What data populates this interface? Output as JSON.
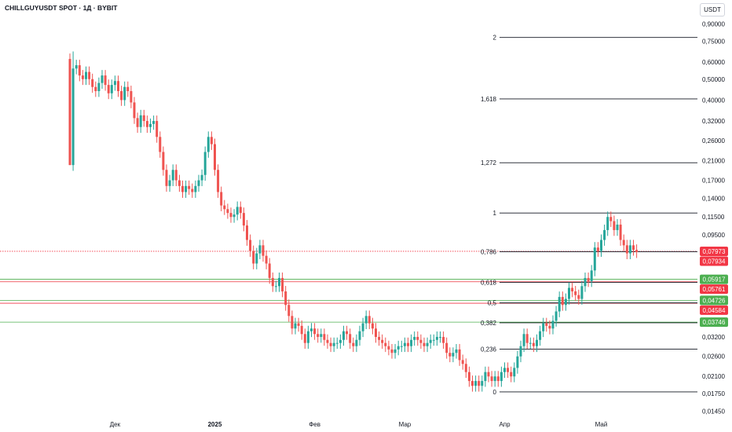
{
  "header": {
    "title": "CHILLGUYUSDT SPOT · 1Д · BYBIT",
    "currency": "USDT"
  },
  "colors": {
    "up": "#26a69a",
    "down": "#ef5350",
    "price_red": "#f23645",
    "price_green": "#4caf50",
    "fib_line": "#131722"
  },
  "chart_data": {
    "type": "candlestick",
    "title": "CHILLGUYUSDT SPOT · 1Д · BYBIT",
    "scale": "log",
    "ylim": [
      0.0135,
      1.0
    ],
    "x_ticks": [
      {
        "label": "Дек",
        "index": 14
      },
      {
        "label": "2025",
        "index": 45
      },
      {
        "label": "Фев",
        "index": 76
      },
      {
        "label": "Мар",
        "index": 104
      },
      {
        "label": "Апр",
        "index": 135
      },
      {
        "label": "Май",
        "index": 165
      }
    ],
    "y_ticks": [
      "0,90000",
      "0,75000",
      "0,60000",
      "0,50000",
      "0,40000",
      "0,32000",
      "0,26000",
      "0,21000",
      "0,17000",
      "0,14000",
      "0,11500",
      "0,09500",
      "0,03200",
      "0,02600",
      "0,02100",
      "0,01750",
      "0,01450"
    ],
    "fib_levels": [
      {
        "label": "2",
        "value": 0.78
      },
      {
        "label": "1,618",
        "value": 0.405
      },
      {
        "label": "1,272",
        "value": 0.205
      },
      {
        "label": "1",
        "value": 0.12
      },
      {
        "label": "0,786",
        "value": 0.0794
      },
      {
        "label": "0,618",
        "value": 0.0573
      },
      {
        "label": "0,5",
        "value": 0.046
      },
      {
        "label": "0,382",
        "value": 0.0372
      },
      {
        "label": "0,236",
        "value": 0.0281
      },
      {
        "label": "0",
        "value": 0.0178
      }
    ],
    "price_labels": [
      {
        "label": "0,07973",
        "value": 0.07973,
        "color": "red"
      },
      {
        "label": "0,07934",
        "value": 0.07934,
        "color": "red"
      },
      {
        "label": "0,05917",
        "value": 0.05917,
        "color": "green"
      },
      {
        "label": "0,05761",
        "value": 0.05761,
        "color": "red"
      },
      {
        "label": "0,04726",
        "value": 0.04726,
        "color": "green"
      },
      {
        "label": "0,04584",
        "value": 0.04584,
        "color": "red"
      },
      {
        "label": "0,03746",
        "value": 0.03746,
        "color": "green"
      }
    ],
    "horizontal_lines": [
      {
        "value": 0.07973,
        "color": "red"
      },
      {
        "value": 0.05917,
        "color": "green"
      },
      {
        "value": 0.05761,
        "color": "red"
      },
      {
        "value": 0.04726,
        "color": "green"
      },
      {
        "value": 0.04584,
        "color": "red"
      },
      {
        "value": 0.03746,
        "color": "green"
      }
    ],
    "candles_close": [
      0.2,
      0.56,
      0.58,
      0.52,
      0.5,
      0.54,
      0.5,
      0.46,
      0.44,
      0.48,
      0.52,
      0.47,
      0.43,
      0.47,
      0.49,
      0.44,
      0.4,
      0.46,
      0.44,
      0.39,
      0.33,
      0.3,
      0.34,
      0.32,
      0.3,
      0.31,
      0.32,
      0.27,
      0.23,
      0.19,
      0.16,
      0.17,
      0.19,
      0.17,
      0.16,
      0.15,
      0.16,
      0.155,
      0.15,
      0.16,
      0.17,
      0.18,
      0.23,
      0.27,
      0.25,
      0.19,
      0.15,
      0.13,
      0.125,
      0.12,
      0.115,
      0.118,
      0.128,
      0.12,
      0.105,
      0.09,
      0.08,
      0.07,
      0.078,
      0.085,
      0.076,
      0.07,
      0.06,
      0.055,
      0.055,
      0.06,
      0.052,
      0.045,
      0.04,
      0.035,
      0.037,
      0.036,
      0.033,
      0.03,
      0.034,
      0.035,
      0.033,
      0.032,
      0.033,
      0.031,
      0.03,
      0.029,
      0.03,
      0.03,
      0.031,
      0.034,
      0.033,
      0.03,
      0.029,
      0.031,
      0.034,
      0.037,
      0.04,
      0.037,
      0.035,
      0.032,
      0.031,
      0.03,
      0.029,
      0.028,
      0.027,
      0.028,
      0.029,
      0.029,
      0.03,
      0.029,
      0.031,
      0.032,
      0.031,
      0.03,
      0.029,
      0.03,
      0.031,
      0.031,
      0.032,
      0.032,
      0.03,
      0.027,
      0.026,
      0.027,
      0.028,
      0.025,
      0.024,
      0.022,
      0.02,
      0.019,
      0.02,
      0.019,
      0.02,
      0.022,
      0.021,
      0.02,
      0.021,
      0.02,
      0.022,
      0.023,
      0.022,
      0.021,
      0.023,
      0.026,
      0.029,
      0.033,
      0.03,
      0.03,
      0.029,
      0.031,
      0.034,
      0.037,
      0.036,
      0.035,
      0.038,
      0.042,
      0.049,
      0.045,
      0.048,
      0.054,
      0.052,
      0.05,
      0.048,
      0.055,
      0.06,
      0.058,
      0.065,
      0.083,
      0.08,
      0.09,
      0.1,
      0.115,
      0.11,
      0.1,
      0.106,
      0.09,
      0.085,
      0.078,
      0.085,
      0.081,
      0.079
    ]
  }
}
